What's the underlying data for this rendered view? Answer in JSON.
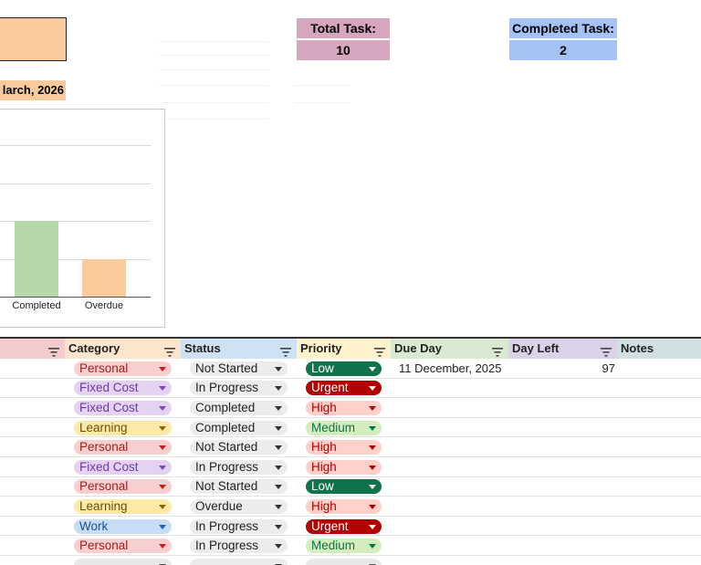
{
  "summary": {
    "date_label": "larch, 2026",
    "total": {
      "label": "Total Task:",
      "value": "10",
      "color": "#d5a6bd"
    },
    "completed": {
      "label": "Completed Task:",
      "value": "2",
      "color": "#a4c2f4"
    }
  },
  "chart_data": {
    "type": "bar",
    "categories": [
      "Completed",
      "Overdue"
    ],
    "values": [
      2,
      1
    ],
    "colors": [
      "#b6d7a8",
      "#f9cb9c"
    ],
    "title": "",
    "xlabel": "",
    "ylabel": "",
    "ylim": [
      0,
      4
    ],
    "grid": true
  },
  "table": {
    "headers": [
      {
        "label": "",
        "color": "#f4cccc"
      },
      {
        "label": "Category",
        "color": "#fce5cd"
      },
      {
        "label": "Status",
        "color": "#cfe2f3"
      },
      {
        "label": "Priority",
        "color": "#fff2cc"
      },
      {
        "label": "Due Day",
        "color": "#d9ead3"
      },
      {
        "label": "Day Left",
        "color": "#d9d2e9"
      },
      {
        "label": "Notes",
        "color": "#d0e0e3"
      }
    ],
    "rows": [
      {
        "category": "Personal",
        "status": "Not Started",
        "priority": "Low",
        "due": "11 December, 2025",
        "left": "97"
      },
      {
        "category": "Fixed Cost",
        "status": "In Progress",
        "priority": "Urgent",
        "due": "",
        "left": ""
      },
      {
        "category": "Fixed Cost",
        "status": "Completed",
        "priority": "High",
        "due": "",
        "left": ""
      },
      {
        "category": "Learning",
        "status": "Completed",
        "priority": "Medium",
        "due": "",
        "left": ""
      },
      {
        "category": "Personal",
        "status": "Not Started",
        "priority": "High",
        "due": "",
        "left": ""
      },
      {
        "category": "Fixed Cost",
        "status": "In Progress",
        "priority": "High",
        "due": "",
        "left": ""
      },
      {
        "category": "Personal",
        "status": "Not Started",
        "priority": "Low",
        "due": "",
        "left": ""
      },
      {
        "category": "Learning",
        "status": "Overdue",
        "priority": "High",
        "due": "",
        "left": ""
      },
      {
        "category": "Work",
        "status": "In Progress",
        "priority": "Urgent",
        "due": "",
        "left": ""
      },
      {
        "category": "Personal",
        "status": "In Progress",
        "priority": "Medium",
        "due": "",
        "left": ""
      },
      {
        "category": "",
        "status": "",
        "priority": "",
        "due": "",
        "left": ""
      }
    ]
  },
  "chip_styles": {
    "category": {
      "Personal": {
        "bg": "#f8cfcf",
        "fg": "#9e1c1c",
        "arrow": "#c41e1e"
      },
      "Fixed Cost": {
        "bg": "#e3d3f1",
        "fg": "#6b3aa1",
        "arrow": "#7d47b8"
      },
      "Learning": {
        "bg": "#fde9a8",
        "fg": "#6b4f00",
        "arrow": "#8a6a00"
      },
      "Work": {
        "bg": "#c7ddf5",
        "fg": "#1c4f8c",
        "arrow": "#1f5fae"
      },
      "": {
        "bg": "#e8e8e8",
        "fg": "#333",
        "arrow": "#555"
      }
    },
    "status": {
      "bg": "#ececec",
      "fg": "#222",
      "arrow": "#333"
    },
    "priority": {
      "Low": {
        "bg": "#11734b",
        "fg": "#ffffff",
        "arrow": "#ffffff"
      },
      "Urgent": {
        "bg": "#b10202",
        "fg": "#ffffff",
        "arrow": "#ffffff"
      },
      "High": {
        "bg": "#ffcfc9",
        "fg": "#b10202",
        "arrow": "#b10202"
      },
      "Medium": {
        "bg": "#d4edbc",
        "fg": "#11734b",
        "arrow": "#11734b"
      },
      "": {
        "bg": "#e8e8e8",
        "fg": "#333",
        "arrow": "#555"
      }
    }
  }
}
